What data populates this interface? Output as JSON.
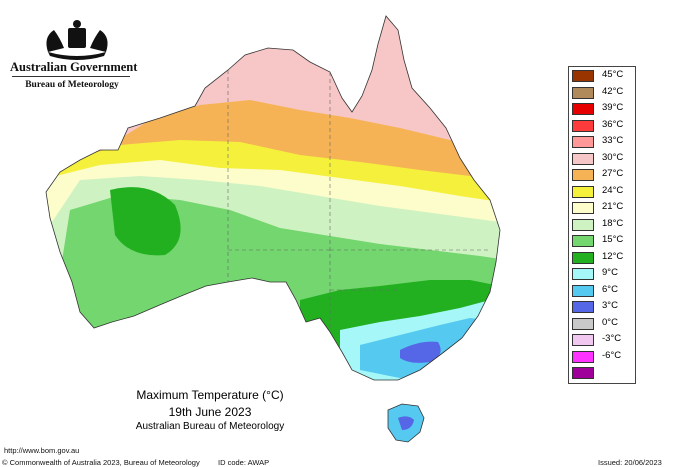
{
  "header": {
    "government": "Australian Government",
    "bureau": "Bureau of Meteorology"
  },
  "caption": {
    "title": "Maximum Temperature (°C)",
    "date": "19th June 2023",
    "organisation": "Australian Bureau of Meteorology"
  },
  "footer": {
    "url": "http://www.bom.gov.au",
    "copyright": "© Commonwealth of Australia 2023, Bureau of Meteorology",
    "id_code": "ID code: AWAP",
    "issued": "Issued: 20/06/2023"
  },
  "legend": [
    {
      "label": "45°C",
      "color": "#993300"
    },
    {
      "label": "42°C",
      "color": "#b08a5a"
    },
    {
      "label": "39°C",
      "color": "#e60000"
    },
    {
      "label": "36°C",
      "color": "#ff3b3b"
    },
    {
      "label": "33°C",
      "color": "#ff9999"
    },
    {
      "label": "30°C",
      "color": "#f7c6c6"
    },
    {
      "label": "27°C",
      "color": "#f5b356"
    },
    {
      "label": "24°C",
      "color": "#f4f03c"
    },
    {
      "label": "21°C",
      "color": "#fdfdcc"
    },
    {
      "label": "18°C",
      "color": "#cff2c2"
    },
    {
      "label": "15°C",
      "color": "#73d66e"
    },
    {
      "label": "12°C",
      "color": "#22b021"
    },
    {
      "label": "9°C",
      "color": "#a6f7f7"
    },
    {
      "label": "6°C",
      "color": "#55c9f0"
    },
    {
      "label": "3°C",
      "color": "#5566e6"
    },
    {
      "label": "0°C",
      "color": "#c9c9c9"
    },
    {
      "label": "-3°C",
      "color": "#f0c8f0"
    },
    {
      "label": "-6°C",
      "color": "#ff33ff"
    },
    {
      "label": "",
      "color": "#a0009a"
    }
  ]
}
